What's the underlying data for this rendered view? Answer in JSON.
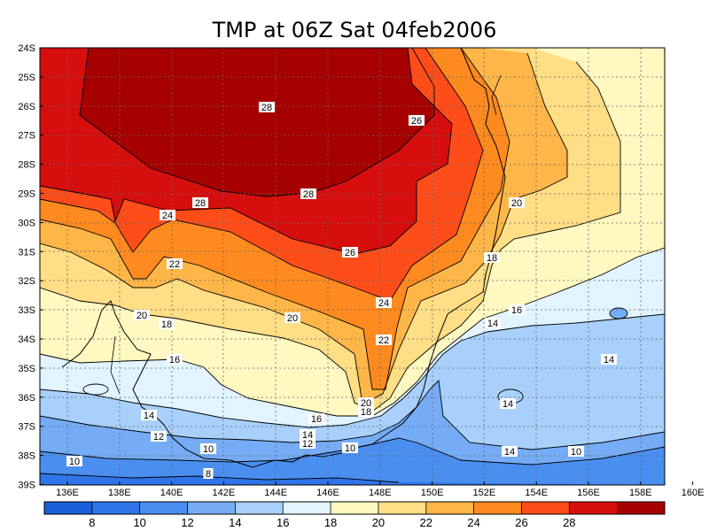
{
  "title": "TMP at 06Z Sat 04feb2006",
  "variable": "TMP",
  "units": "",
  "lat_labels": [
    "24S",
    "25S",
    "26S",
    "27S",
    "28S",
    "29S",
    "30S",
    "31S",
    "32S",
    "33S",
    "34S",
    "35S",
    "36S",
    "37S",
    "38S",
    "39S"
  ],
  "lon_labels": [
    "136E",
    "138E",
    "140E",
    "142E",
    "144E",
    "146E",
    "148E",
    "150E",
    "152E",
    "154E",
    "156E",
    "158E",
    "160E"
  ],
  "colorbar": {
    "tick_labels": [
      "8",
      "10",
      "12",
      "14",
      "16",
      "18",
      "20",
      "22",
      "24",
      "26",
      "28"
    ],
    "colors": [
      "#1a5ed8",
      "#2f74e8",
      "#4a8ef0",
      "#76acf6",
      "#a8d0fb",
      "#e2f4ff",
      "#fff8c0",
      "#ffde85",
      "#ffb648",
      "#ff8a1f",
      "#ff4d1a",
      "#d60e0e",
      "#a60000"
    ]
  },
  "contour_labels": [
    {
      "text": "28"
    },
    {
      "text": "28"
    },
    {
      "text": "28"
    },
    {
      "text": "26"
    },
    {
      "text": "26"
    },
    {
      "text": "24"
    },
    {
      "text": "24"
    },
    {
      "text": "22"
    },
    {
      "text": "22"
    },
    {
      "text": "20"
    },
    {
      "text": "20"
    },
    {
      "text": "20"
    },
    {
      "text": "20"
    },
    {
      "text": "18"
    },
    {
      "text": "18"
    },
    {
      "text": "18"
    },
    {
      "text": "16"
    },
    {
      "text": "16"
    },
    {
      "text": "16"
    },
    {
      "text": "14"
    },
    {
      "text": "14"
    },
    {
      "text": "14"
    },
    {
      "text": "14"
    },
    {
      "text": "14"
    },
    {
      "text": "14"
    },
    {
      "text": "12"
    },
    {
      "text": "12"
    },
    {
      "text": "10"
    },
    {
      "text": "10"
    },
    {
      "text": "10"
    },
    {
      "text": "10"
    },
    {
      "text": "8"
    }
  ],
  "chart_data": {
    "type": "heatmap",
    "title": "TMP at 06Z Sat 04feb2006",
    "xlim": [
      "136E",
      "160E"
    ],
    "ylim": [
      "39S",
      "24S"
    ],
    "colorbar_range": [
      8,
      28
    ],
    "contour_interval": 2,
    "levels": [
      8,
      10,
      12,
      14,
      16,
      18,
      20,
      22,
      24,
      26,
      28
    ],
    "grid": true
  }
}
